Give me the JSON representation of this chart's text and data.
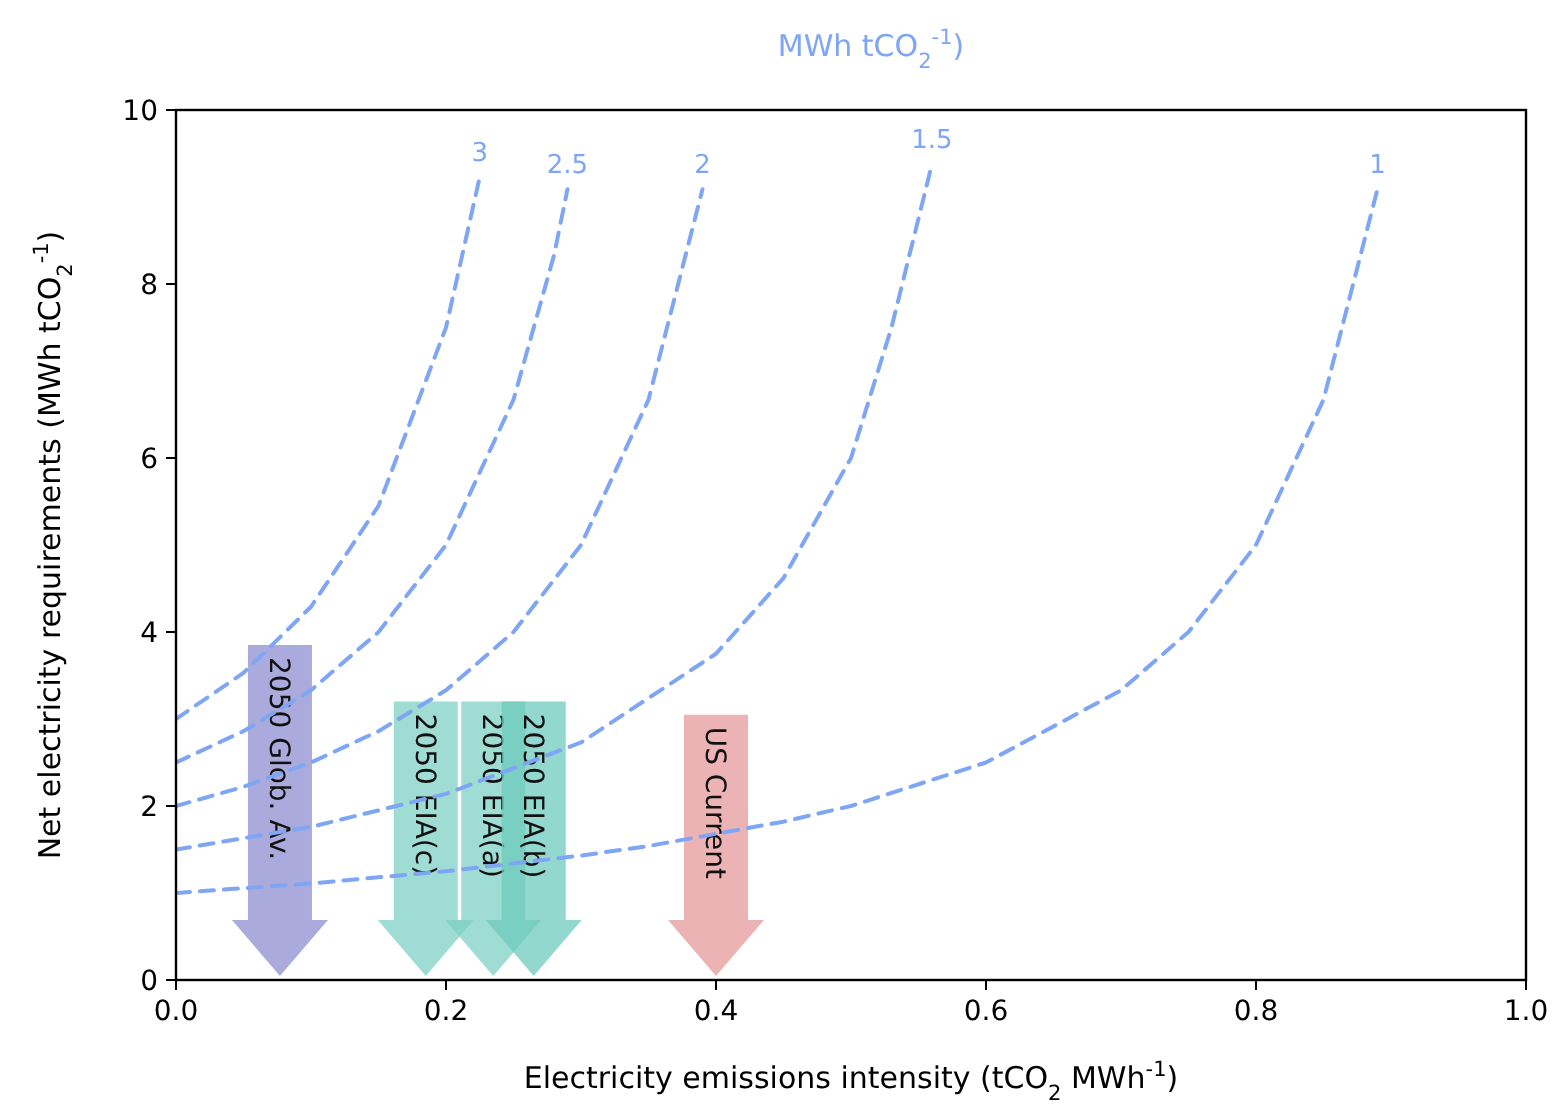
{
  "chart_data": {
    "type": "line",
    "title": "MWh tCO$_{2}$$^{-1}$)",
    "xlabel": "Electricity emissions intensity (tCO$_{2}$ MWh$^{-1}$)",
    "ylabel": "Net electricity requirements (MWh tCO$_{2}$$^{-1}$)",
    "xlim": [
      0,
      1
    ],
    "xticks": [
      {
        "value": 0,
        "label": "0.0"
      },
      {
        "value": 0.2,
        "label": "0.2"
      },
      {
        "value": 0.4,
        "label": "0.4"
      },
      {
        "value": 0.6,
        "label": "0.6"
      },
      {
        "value": 0.8,
        "label": "0.8"
      },
      {
        "value": 1,
        "label": "1.0"
      }
    ],
    "ylim": [
      0,
      10
    ],
    "yticks": [
      0,
      2,
      4,
      6,
      8,
      10
    ],
    "line_style": "dashed",
    "series": [
      {
        "name": "3",
        "color": "#7ea6f4",
        "x": [
          0,
          0.05,
          0.1,
          0.15,
          0.2,
          0.225
        ],
        "values": [
          3,
          3.53,
          4.29,
          5.45,
          7.5,
          9.23
        ]
      },
      {
        "name": "2.5",
        "color": "#7ea6f4",
        "x": [
          0,
          0.05,
          0.1,
          0.15,
          0.2,
          0.25,
          0.28,
          0.29
        ],
        "values": [
          2.5,
          2.86,
          3.33,
          4,
          5,
          6.67,
          8.33,
          9.09
        ]
      },
      {
        "name": "2",
        "color": "#7ea6f4",
        "x": [
          0,
          0.05,
          0.1,
          0.15,
          0.2,
          0.25,
          0.3,
          0.35,
          0.39
        ],
        "values": [
          2,
          2.22,
          2.5,
          2.86,
          3.33,
          4,
          5,
          6.67,
          9.09
        ]
      },
      {
        "name": "1.5",
        "color": "#7ea6f4",
        "x": [
          0,
          0.1,
          0.2,
          0.3,
          0.4,
          0.45,
          0.5,
          0.53,
          0.56
        ],
        "values": [
          1.5,
          1.76,
          2.14,
          2.73,
          3.75,
          4.62,
          6,
          7.5,
          9.38
        ]
      },
      {
        "name": "1",
        "color": "#7ea6f4",
        "x": [
          0,
          0.1,
          0.2,
          0.3,
          0.35,
          0.45,
          0.5,
          0.6,
          0.7,
          0.75,
          0.8,
          0.85,
          0.89
        ],
        "values": [
          1,
          1.11,
          1.25,
          1.43,
          1.54,
          1.82,
          2,
          2.5,
          3.33,
          4,
          5,
          6.67,
          9.09
        ]
      }
    ],
    "annotations": [
      "2050 Glob. Av.",
      "2050 EIA(c)",
      "2050 EIA(a)",
      "2050 EIA(b)",
      "US Current"
    ]
  }
}
